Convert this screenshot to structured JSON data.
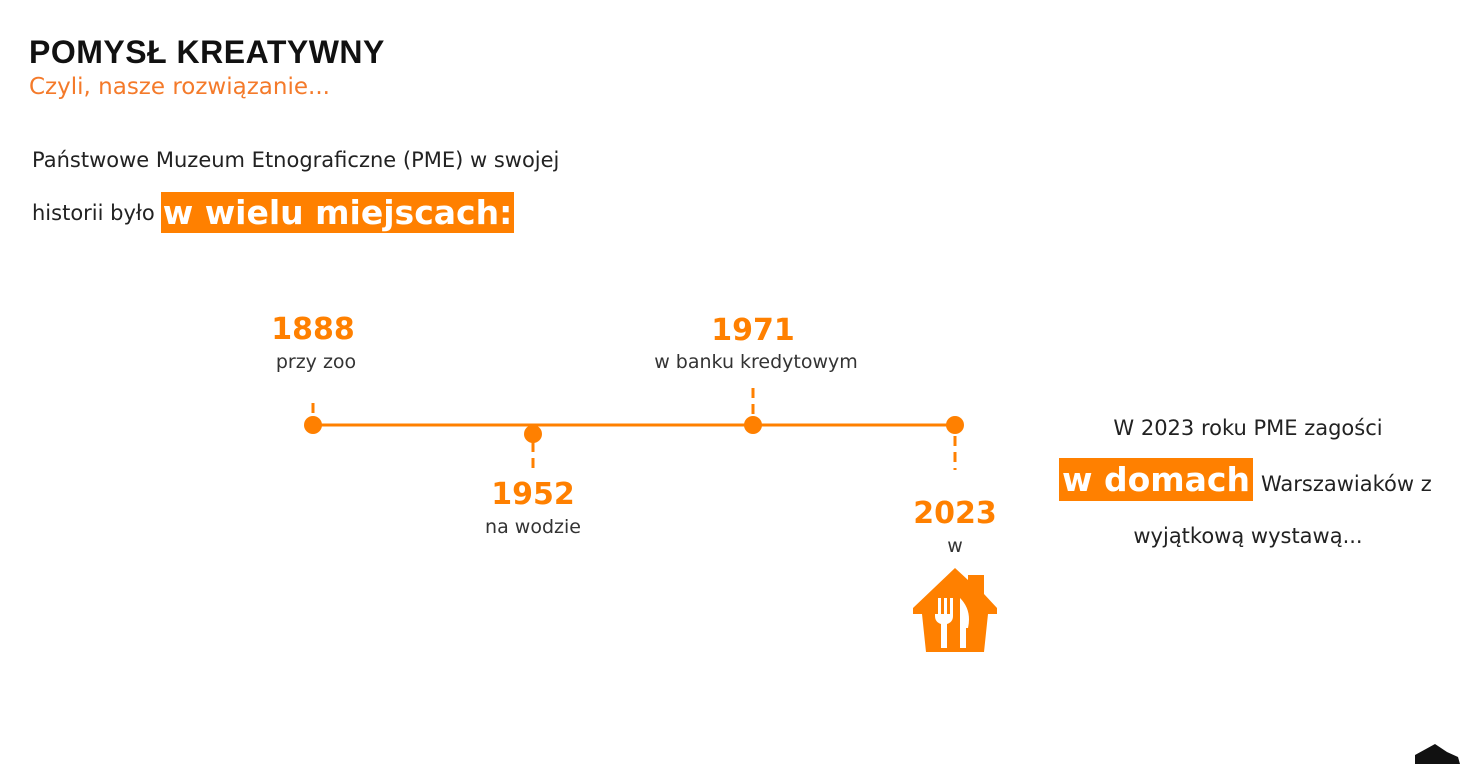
{
  "header": {
    "title": "POMYSŁ KREATYWNY",
    "subtitle": "Czyli, nasze rozwiązanie..."
  },
  "intro": {
    "line1": "Państwowe Muzeum Etnograficzne (PME) w swojej",
    "line2": "historii było",
    "highlight": "w wielu miejscach:"
  },
  "timeline": {
    "events": [
      {
        "year": "1888",
        "label": "przy zoo"
      },
      {
        "year": "1952",
        "label": "na wodzie"
      },
      {
        "year": "1971",
        "label": "w banku kredytowym"
      },
      {
        "year": "2023",
        "label": "w"
      }
    ]
  },
  "outro": {
    "line1": "W 2023 roku PME zagości",
    "highlight": "w domach",
    "line2": "Warszawiaków z",
    "line3": "wyjątkową wystawą..."
  }
}
